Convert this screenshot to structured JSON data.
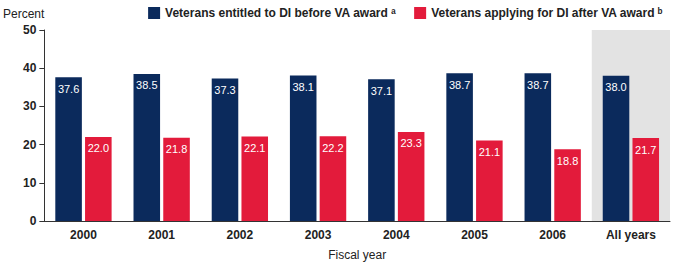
{
  "chart_data": {
    "type": "bar",
    "y_label": "Percent",
    "x_label": "Fiscal year",
    "categories": [
      "2000",
      "2001",
      "2002",
      "2003",
      "2004",
      "2005",
      "2006",
      "All years"
    ],
    "series": [
      {
        "name": "Veterans entitled to DI before VA award ᵃ",
        "color": "#0b2a5c",
        "values": [
          37.6,
          38.5,
          37.3,
          38.1,
          37.1,
          38.7,
          38.7,
          38.0
        ],
        "value_labels": [
          "37.6",
          "38.5",
          "37.3",
          "38.1",
          "37.1",
          "38.7",
          "38.7",
          "38.0"
        ]
      },
      {
        "name": "Veterans applying for DI after VA award ᵇ",
        "color": "#e31b3b",
        "values": [
          22.0,
          21.8,
          22.1,
          22.2,
          23.3,
          21.1,
          18.8,
          21.7
        ],
        "value_labels": [
          "22.0",
          "21.8",
          "22.1",
          "22.2",
          "23.3",
          "21.1",
          "18.8",
          "21.7"
        ]
      }
    ],
    "ylim": [
      0,
      50
    ],
    "yticks": [
      0,
      10,
      20,
      30,
      40,
      50
    ],
    "grid": false,
    "legend": "top-right",
    "data_labels": true
  }
}
